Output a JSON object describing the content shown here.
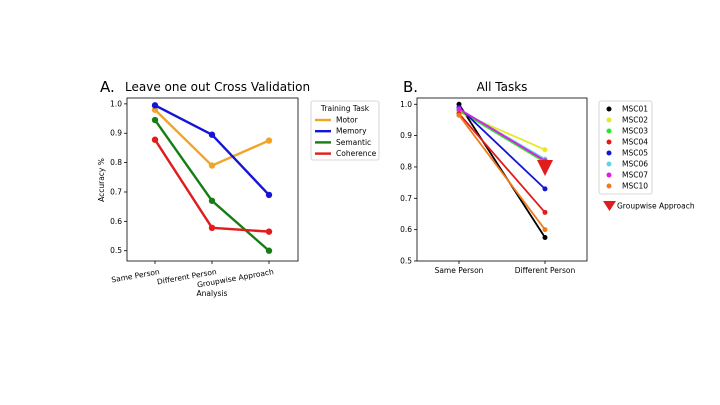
{
  "chart_data": [
    {
      "type": "line",
      "panel_letter": "A.",
      "title": "Leave one out Cross Validation",
      "xlabel": "Analysis",
      "ylabel": "Accuracy %",
      "categories": [
        "Same Person",
        "Different Person",
        "Groupwise Approach"
      ],
      "yticks": [
        "0.5",
        "0.6",
        "0.7",
        "0.8",
        "0.9",
        "1.0"
      ],
      "ylim": [
        0.465,
        1.02
      ],
      "legend_title": "Training Task",
      "legend_position": "outside-right",
      "series": [
        {
          "name": "Motor",
          "color": "#f0a527",
          "values": [
            0.98,
            0.79,
            0.875
          ]
        },
        {
          "name": "Memory",
          "color": "#1515d6",
          "values": [
            0.995,
            0.895,
            0.69
          ]
        },
        {
          "name": "Semantic",
          "color": "#147d14",
          "values": [
            0.945,
            0.67,
            0.5
          ]
        },
        {
          "name": "Coherence",
          "color": "#e01c1c",
          "values": [
            0.878,
            0.578,
            0.565
          ]
        }
      ]
    },
    {
      "type": "line",
      "panel_letter": "B.",
      "title": "All Tasks",
      "categories": [
        "Same Person",
        "Different Person"
      ],
      "yticks": [
        "0.5",
        "0.6",
        "0.7",
        "0.8",
        "0.9",
        "1.0"
      ],
      "ylim": [
        0.5,
        1.02
      ],
      "legend_position": "outside-right",
      "series": [
        {
          "name": "MSC01",
          "color": "#000000",
          "values": [
            1.0,
            0.575
          ]
        },
        {
          "name": "MSC02",
          "color": "#e8e82a",
          "values": [
            0.975,
            0.855
          ]
        },
        {
          "name": "MSC03",
          "color": "#32e032",
          "values": [
            0.98,
            0.815
          ]
        },
        {
          "name": "MSC04",
          "color": "#e01c1c",
          "values": [
            0.97,
            0.655
          ]
        },
        {
          "name": "MSC05",
          "color": "#1515d6",
          "values": [
            0.99,
            0.73
          ]
        },
        {
          "name": "MSC06",
          "color": "#5ad6e8",
          "values": [
            0.985,
            0.825
          ]
        },
        {
          "name": "MSC07",
          "color": "#e01ce0",
          "values": [
            0.985,
            0.82
          ]
        },
        {
          "name": "MSC10",
          "color": "#f07a1c",
          "values": [
            0.965,
            0.6
          ]
        }
      ],
      "groupwise": {
        "name": "Groupwise Approach",
        "color": "#e01c1c",
        "value": 0.8
      }
    }
  ]
}
